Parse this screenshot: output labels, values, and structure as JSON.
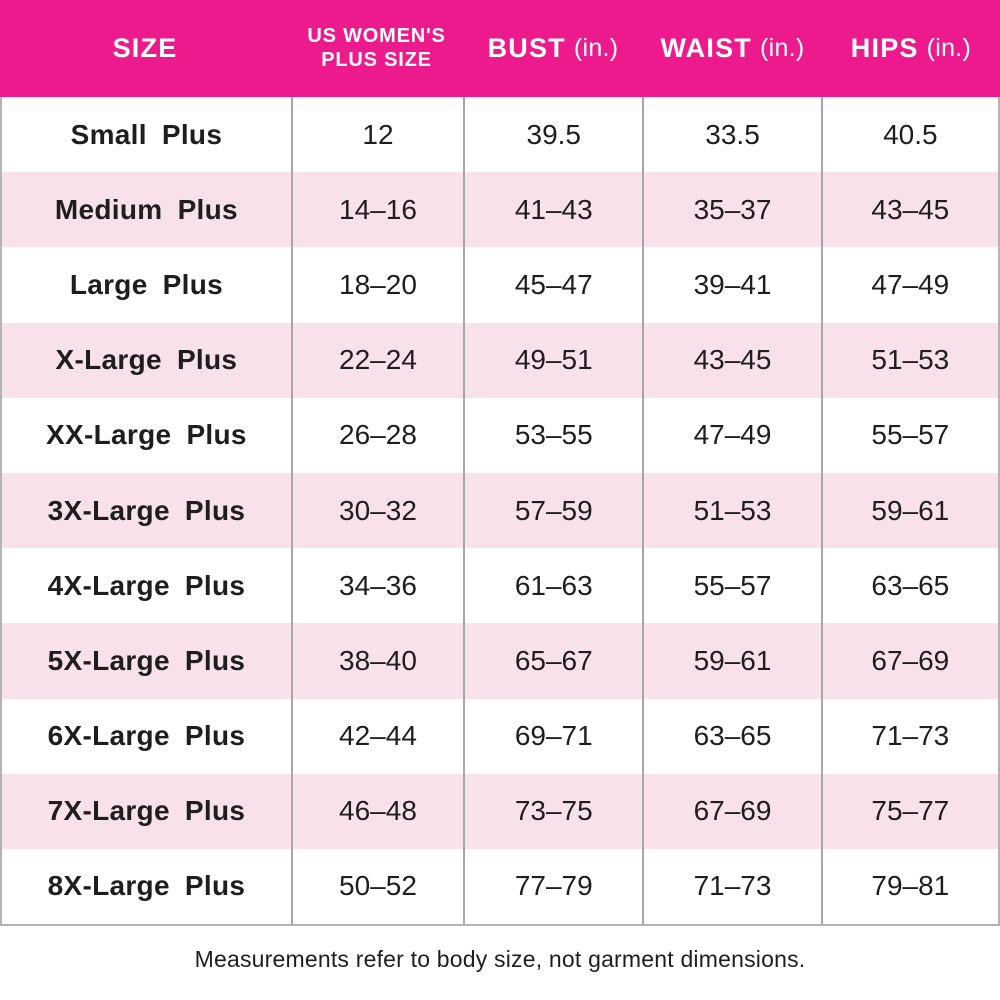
{
  "chart_data": {
    "type": "table",
    "columns": [
      {
        "id": "size",
        "label": "SIZE"
      },
      {
        "id": "us_plus",
        "label": "US WOMEN'S",
        "label_line2": "PLUS SIZE"
      },
      {
        "id": "bust",
        "label": "BUST",
        "unit": "(in.)"
      },
      {
        "id": "waist",
        "label": "WAIST",
        "unit": "(in.)"
      },
      {
        "id": "hips",
        "label": "HIPS",
        "unit": "(in.)"
      }
    ],
    "rows": [
      {
        "size": "Small Plus",
        "us_plus": "12",
        "bust": "39.5",
        "waist": "33.5",
        "hips": "40.5"
      },
      {
        "size": "Medium Plus",
        "us_plus": "14–16",
        "bust": "41–43",
        "waist": "35–37",
        "hips": "43–45"
      },
      {
        "size": "Large Plus",
        "us_plus": "18–20",
        "bust": "45–47",
        "waist": "39–41",
        "hips": "47–49"
      },
      {
        "size": "X-Large Plus",
        "us_plus": "22–24",
        "bust": "49–51",
        "waist": "43–45",
        "hips": "51–53"
      },
      {
        "size": "XX-Large Plus",
        "us_plus": "26–28",
        "bust": "53–55",
        "waist": "47–49",
        "hips": "55–57"
      },
      {
        "size": "3X-Large Plus",
        "us_plus": "30–32",
        "bust": "57–59",
        "waist": "51–53",
        "hips": "59–61"
      },
      {
        "size": "4X-Large Plus",
        "us_plus": "34–36",
        "bust": "61–63",
        "waist": "55–57",
        "hips": "63–65"
      },
      {
        "size": "5X-Large Plus",
        "us_plus": "38–40",
        "bust": "65–67",
        "waist": "59–61",
        "hips": "67–69"
      },
      {
        "size": "6X-Large Plus",
        "us_plus": "42–44",
        "bust": "69–71",
        "waist": "63–65",
        "hips": "71–73"
      },
      {
        "size": "7X-Large Plus",
        "us_plus": "46–48",
        "bust": "73–75",
        "waist": "67–69",
        "hips": "75–77"
      },
      {
        "size": "8X-Large Plus",
        "us_plus": "50–52",
        "bust": "77–79",
        "waist": "71–73",
        "hips": "79–81"
      }
    ]
  },
  "footnote": "Measurements refer to body size, not garment dimensions.",
  "colors": {
    "header_bg": "#EC1A8D",
    "header_text": "#FFFFFF",
    "row_alt_bg": "#F9E1EC",
    "divider": "#A6A6A6",
    "outer_border": "#B4B4B4",
    "text": "#1E1E1E"
  }
}
